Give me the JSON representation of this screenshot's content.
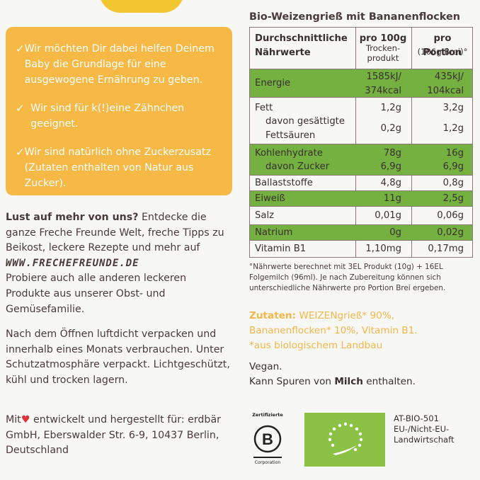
{
  "benefits": [
    "Wir möchten Dir dabei helfen Deinem Baby die Grundlage für eine ausgewogene Ernährung zu geben.",
    "Wir sind für k(!)eine Zähnchen geeignet.",
    "Wir sind natürlich ohne Zuckerzusatz (Zutaten enthalten von Natur aus Zucker)."
  ],
  "promo": {
    "heading": "Lust auf mehr von uns?",
    "text": "Entdecke die ganze Freche Freunde Welt, freche Tipps zu Beikost, leckere Rezepte und mehr auf",
    "url": "WWW.FRECHEFREUNDE.DE",
    "text2": "Probiere auch alle anderen leckeren Produkte aus unserer Obst- und Gemüsefamilie."
  },
  "storage": "Nach dem Öffnen luftdicht verpacken und innerhalb eines Monats verbrauchen. Unter Schutzatmosphäre verpackt. Lichtgeschützt, kühl und trocken lagern.",
  "made": {
    "pre": "Mit",
    "post": "entwickelt und hergestellt für: erdbär GmbH, Eberswalder Str. 6-9, 10437 Berlin, Deutschland"
  },
  "nutrition": {
    "title": "Bio-Weizengrieß mit Bananenflocken",
    "header": {
      "col0_line1": "Durchschnittliche",
      "col0_line2": "Nährwerte",
      "col1_line1": "pro 100g",
      "col1_line2": "Trocken-",
      "col1_line3": "produkt",
      "col2_line1": "pro Portion",
      "col2_line2": "(106g Brei)°"
    },
    "energy": {
      "name": "Energie",
      "v1a": "1585kJ/",
      "v1b": "374kcal",
      "v2a": "435kJ/",
      "v2b": "104kcal"
    },
    "fat": {
      "name": "Fett",
      "v1": "1,2g",
      "v2": "3,2g",
      "sub1": "davon gesättigte",
      "sub2": "Fettsäuren",
      "sv1": "0,2g",
      "sv2": "1,2g"
    },
    "carbs": {
      "name": "Kohlenhydrate",
      "v1": "78g",
      "v2": "16g",
      "sub": "davon Zucker",
      "sv1": "6,9g",
      "sv2": "6,9g"
    },
    "fibre": {
      "name": "Ballaststoffe",
      "v1": "4,8g",
      "v2": "0,8g"
    },
    "protein": {
      "name": "Eiweiß",
      "v1": "11g",
      "v2": "2,5g"
    },
    "salt": {
      "name": "Salz",
      "v1": "0,01g",
      "v2": "0,06g"
    },
    "sodium": {
      "name": "Natrium",
      "v1": "0g",
      "v2": "0,02g"
    },
    "vitamin": {
      "name": "Vitamin B1",
      "v1": "1,10mg",
      "v2": "0,17mg"
    },
    "footnote": "°Nährwerte berechnet mit 3EL Produkt (10g) + 16EL Folgemilch (96ml). Je nach Zubereitung können sich unterschiedliche Nährwerte pro Portion Brei ergeben."
  },
  "ingredients": {
    "label": "Zutaten:",
    "line1": "WEIZENgrieß* 90%,",
    "line2": "Bananenflocken* 10%, Vitamin B1.",
    "line3": "*aus biologischem Landbau"
  },
  "vegan": {
    "line1": "Vegan.",
    "pre": "Kann Spuren von",
    "bold": "Milch",
    "post": "enthalten."
  },
  "bcorp": {
    "top": "Zertifizierte",
    "letter": "B",
    "bottom": "Corporation"
  },
  "eu": {
    "line1": "AT-BIO-501",
    "line2": "EU-/Nicht-EU-",
    "line3": "Landwirtschaft"
  },
  "colors": {
    "yellow": "#f7b946",
    "green": "#74b140",
    "text": "#4a3a3a",
    "ingredients": "#f5b648",
    "heart": "#e0303a"
  }
}
